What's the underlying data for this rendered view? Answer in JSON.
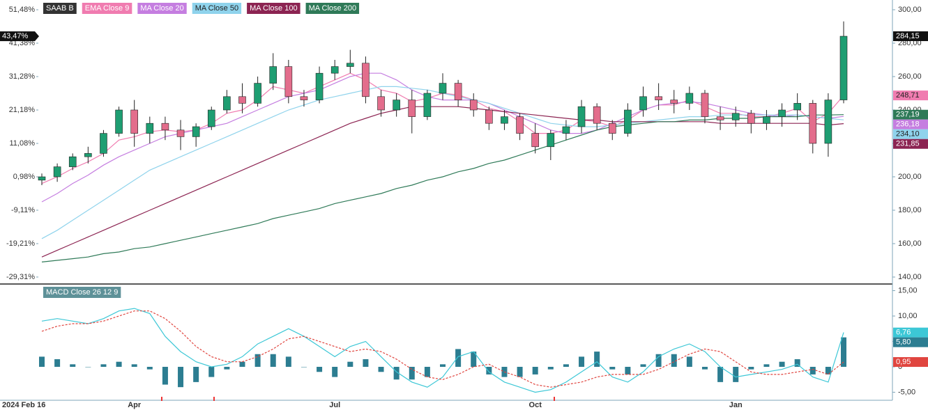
{
  "chart_data": [
    {
      "type": "candlestick",
      "name": "SAAB B",
      "categories": [
        "2024 Feb 16",
        null,
        null,
        null,
        null,
        null,
        "Apr",
        null,
        null,
        null,
        null,
        null,
        null,
        null,
        null,
        null,
        null,
        null,
        null,
        "Jul",
        null,
        null,
        null,
        null,
        null,
        null,
        null,
        null,
        null,
        null,
        null,
        null,
        "Oct",
        null,
        null,
        null,
        null,
        null,
        null,
        null,
        null,
        null,
        null,
        null,
        null,
        "Jan",
        null,
        null,
        null,
        null,
        null,
        null,
        null
      ],
      "open": [
        198,
        200,
        206,
        212,
        214,
        226,
        240,
        226,
        232,
        228,
        224,
        230,
        240,
        248,
        244,
        256,
        266,
        248,
        246,
        262,
        266,
        268,
        248,
        240,
        246,
        236,
        250,
        256,
        246,
        240,
        232,
        236,
        226,
        218,
        226,
        230,
        242,
        232,
        226,
        240,
        248,
        246,
        244,
        250,
        236,
        234,
        238,
        232,
        236,
        240,
        244,
        220,
        246
      ],
      "high": [
        202,
        208,
        214,
        218,
        228,
        242,
        246,
        236,
        236,
        234,
        232,
        242,
        252,
        256,
        260,
        274,
        270,
        252,
        266,
        270,
        276,
        272,
        252,
        250,
        252,
        252,
        262,
        258,
        250,
        242,
        240,
        238,
        232,
        228,
        234,
        246,
        244,
        234,
        244,
        254,
        256,
        252,
        254,
        252,
        242,
        242,
        240,
        240,
        244,
        250,
        246,
        250,
        293
      ],
      "low": [
        195,
        197,
        204,
        208,
        212,
        224,
        218,
        220,
        222,
        216,
        218,
        228,
        238,
        238,
        242,
        252,
        244,
        242,
        244,
        258,
        262,
        244,
        236,
        236,
        226,
        234,
        246,
        242,
        236,
        228,
        228,
        222,
        214,
        210,
        222,
        226,
        228,
        222,
        224,
        236,
        240,
        238,
        240,
        232,
        228,
        230,
        226,
        228,
        230,
        234,
        214,
        212,
        244
      ],
      "close": [
        200,
        206,
        212,
        214,
        226,
        240,
        226,
        232,
        228,
        224,
        230,
        240,
        248,
        244,
        256,
        266,
        248,
        246,
        262,
        266,
        268,
        248,
        240,
        246,
        236,
        250,
        256,
        246,
        240,
        232,
        236,
        226,
        218,
        226,
        230,
        242,
        232,
        226,
        240,
        248,
        246,
        244,
        250,
        236,
        234,
        238,
        232,
        236,
        240,
        244,
        220,
        246,
        284.15
      ],
      "up_color": "#1e9e72",
      "down_color": "#e36d8c",
      "ylim": [
        135.83,
        305.83
      ],
      "yticks": [
        {
          "value": 140,
          "label": "140,00"
        },
        {
          "value": 160,
          "label": "160,00"
        },
        {
          "value": 180,
          "label": "180,00"
        },
        {
          "value": 200,
          "label": "200,00"
        },
        {
          "value": 220,
          "label": "220,00"
        },
        {
          "value": 240,
          "label": "240,00"
        },
        {
          "value": 260,
          "label": "260,00"
        },
        {
          "value": 280,
          "label": "280,00"
        },
        {
          "value": 300,
          "label": "300,00"
        }
      ],
      "y2lim": [
        -31.42,
        54.43
      ],
      "y2ticks": [
        {
          "value": -29.31,
          "label": "-29,31%"
        },
        {
          "value": -19.21,
          "label": "-19,21%"
        },
        {
          "value": -9.11,
          "label": "-9,11%"
        },
        {
          "value": 0.98,
          "label": "0,98%"
        },
        {
          "value": 11.08,
          "label": "11,08%"
        },
        {
          "value": 21.18,
          "label": "21,18%"
        },
        {
          "value": 31.28,
          "label": "31,28%"
        },
        {
          "value": 41.38,
          "label": "41,38%"
        },
        {
          "value": 51.48,
          "label": "51,48%"
        }
      ],
      "last_label": "284,15",
      "change_label": {
        "value": 43.47,
        "label": "43,47%"
      },
      "series": [
        {
          "name": "EMA Close 9",
          "color": "#f07cb0",
          "last_label": "248,71",
          "values": [
            196,
            200,
            205,
            209,
            214,
            222,
            224,
            227,
            228,
            227,
            228,
            232,
            238,
            240,
            246,
            254,
            252,
            250,
            254,
            258,
            262,
            258,
            252,
            250,
            245,
            247,
            250,
            249,
            246,
            241,
            239,
            233,
            226,
            226,
            228,
            234,
            233,
            230,
            234,
            240,
            243,
            243,
            246,
            242,
            238,
            238,
            236,
            236,
            238,
            241,
            233,
            238,
            248.71
          ]
        },
        {
          "name": "MA Close 20",
          "color": "#c57ee0",
          "last_label": "236,18",
          "values": [
            185,
            190,
            196,
            201,
            207,
            212,
            216,
            220,
            224,
            226,
            228,
            230,
            232,
            236,
            240,
            244,
            248,
            250,
            252,
            256,
            260,
            262,
            262,
            258,
            252,
            248,
            246,
            246,
            246,
            244,
            240,
            236,
            232,
            228,
            226,
            226,
            228,
            232,
            236,
            240,
            243,
            244,
            245,
            244,
            242,
            240,
            238,
            237,
            236,
            237,
            236,
            235,
            236.18
          ]
        },
        {
          "name": "MA Close 50",
          "color": "#8fd3ec",
          "last_label": "234,10",
          "values": [
            163,
            168,
            174,
            180,
            186,
            192,
            198,
            204,
            208,
            212,
            216,
            220,
            224,
            228,
            232,
            236,
            240,
            243,
            246,
            248,
            250,
            252,
            254,
            254,
            253,
            252,
            250,
            248,
            246,
            244,
            241,
            238,
            235,
            232,
            231,
            230,
            230,
            231,
            232,
            233,
            234,
            235,
            236,
            236,
            237,
            237,
            237,
            237,
            237,
            237,
            236,
            235,
            234.1
          ]
        },
        {
          "name": "MA Close 100",
          "color": "#8c2452",
          "last_label": "231,85",
          "values": [
            152,
            156,
            160,
            164,
            168,
            172,
            176,
            180,
            184,
            188,
            192,
            196,
            200,
            204,
            208,
            212,
            216,
            220,
            224,
            228,
            232,
            235,
            238,
            240,
            242,
            242,
            242,
            242,
            241,
            240,
            239,
            238,
            237,
            236,
            235,
            234,
            234,
            233,
            233,
            233,
            233,
            233,
            233,
            233,
            232,
            232,
            232,
            232,
            232,
            232,
            232,
            231,
            231.85
          ]
        },
        {
          "name": "MA Close 200",
          "color": "#2f7a58",
          "last_label": "237,19",
          "values": [
            149,
            150,
            151,
            152,
            154,
            155,
            157,
            158,
            160,
            162,
            164,
            166,
            168,
            170,
            172,
            175,
            177,
            179,
            181,
            184,
            186,
            188,
            190,
            193,
            195,
            198,
            200,
            203,
            205,
            208,
            210,
            213,
            216,
            219,
            222,
            225,
            228,
            230,
            231,
            232,
            233,
            233,
            234,
            234,
            235,
            235,
            235,
            236,
            236,
            236,
            237,
            237,
            237.19
          ]
        }
      ]
    },
    {
      "type": "macd",
      "title": "MACD Close 26 12 9",
      "title_color": "#5e9198",
      "ylim": [
        -6.58,
        16.03
      ],
      "yticks": [
        {
          "value": -5,
          "label": "-5,00"
        },
        0,
        {
          "value": 5,
          "label": "5,00"
        },
        {
          "value": 10,
          "label": "10,00"
        },
        {
          "value": 15,
          "label": "15,00"
        }
      ],
      "series": [
        {
          "kind": "histogram",
          "color": "#2c7d91",
          "last_label": "5,80",
          "values": [
            2,
            1.5,
            0.5,
            0,
            0.5,
            1,
            0.5,
            -0.5,
            -3.5,
            -4,
            -3,
            -2,
            -0.5,
            1,
            2.5,
            2.5,
            2,
            0,
            -1,
            -2,
            1,
            1.5,
            -1,
            -2.5,
            -2.5,
            -2,
            0.5,
            3.5,
            3,
            -1.5,
            -2,
            -2,
            -1.5,
            -0.5,
            0.5,
            2,
            3,
            -0.5,
            -1.5,
            0.5,
            2.5,
            2.5,
            2,
            -0.5,
            -3,
            -3,
            -0.5,
            0.5,
            1,
            1.5,
            -1.5,
            -1.5,
            5.8
          ]
        },
        {
          "kind": "line",
          "color": "#3cc7d6",
          "last_label": "6,76",
          "values": [
            9,
            9.5,
            9,
            8.5,
            9.5,
            11,
            11.5,
            10.5,
            6,
            3,
            1,
            0,
            0.5,
            2,
            4.5,
            6,
            7.5,
            6,
            4,
            2,
            4,
            5,
            2,
            -1,
            -3,
            -4,
            -2,
            2,
            3,
            -1,
            -3,
            -4,
            -5,
            -4.5,
            -3,
            -1,
            1,
            -2,
            -3,
            -1,
            2,
            3.5,
            4.5,
            3,
            0,
            -2,
            -1.5,
            -1,
            -0.5,
            0.5,
            -2,
            -3,
            6.76
          ]
        },
        {
          "kind": "dashed",
          "color": "#e0453f",
          "last_label": "0,95",
          "values": [
            7,
            8,
            8.5,
            8.5,
            9,
            10,
            11,
            11,
            9.5,
            7,
            4,
            2,
            1,
            1,
            2,
            3.5,
            5.5,
            6,
            5,
            4,
            3,
            3.5,
            3,
            1.5,
            -0.5,
            -2,
            -2.5,
            -1.5,
            0,
            0.5,
            -1,
            -2,
            -3.5,
            -4,
            -3.5,
            -3,
            -2,
            -1.5,
            -1.5,
            -1.5,
            -0.5,
            1,
            2.5,
            3.5,
            3,
            1,
            -1,
            -1.5,
            -1.5,
            -1,
            -0.5,
            -1.5,
            0.95
          ]
        }
      ]
    }
  ]
}
